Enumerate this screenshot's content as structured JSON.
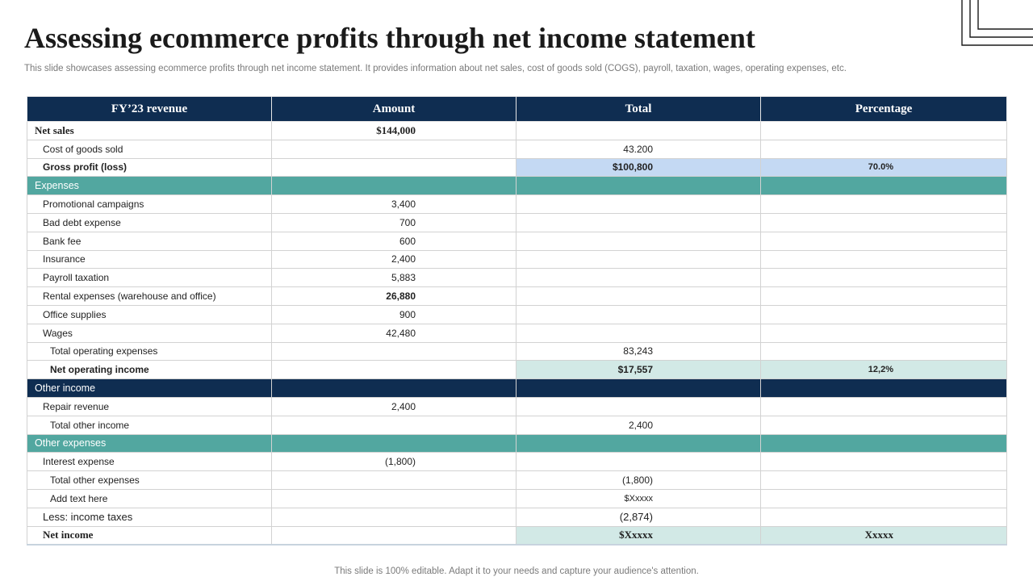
{
  "title": "Assessing ecommerce profits through net income statement",
  "subtitle": "This slide showcases assessing ecommerce profits through net income statement. It provides information about net sales, cost of goods sold (COGS), payroll, taxation,  wages, operating expenses, etc.",
  "table": {
    "headers": [
      "FY’23   revenue",
      "Amount",
      "Total",
      "Percentage"
    ],
    "net_sales": {
      "label": "Net sales",
      "amount": "$144,000"
    },
    "cogs": {
      "label": "Cost of goods sold",
      "total": "43.200"
    },
    "gross_profit": {
      "label": "Gross profit (loss)",
      "total": "$100,800",
      "percentage": "70.0%"
    },
    "expenses_header": "Expenses",
    "expenses": [
      {
        "label": "Promotional campaigns",
        "amount": "3,400"
      },
      {
        "label": "Bad debt expense",
        "amount": "700"
      },
      {
        "label": "Bank fee",
        "amount": "600"
      },
      {
        "label": "Insurance",
        "amount": "2,400"
      },
      {
        "label": "Payroll taxation",
        "amount": "5,883"
      },
      {
        "label": "Rental expenses (warehouse and office)",
        "amount": "26,880"
      },
      {
        "label": "Office supplies",
        "amount": "900"
      },
      {
        "label": "Wages",
        "amount": "42,480"
      }
    ],
    "total_operating": {
      "label": "Total operating expenses",
      "total": "83,243"
    },
    "net_operating": {
      "label": "Net operating income",
      "total": "$17,557",
      "percentage": "12,2%"
    },
    "other_income_header": "Other income",
    "repair_revenue": {
      "label": "Repair revenue",
      "amount": "2,400"
    },
    "total_other_income": {
      "label": "Total other income",
      "total": "2,400"
    },
    "other_expenses_header": "Other expenses",
    "interest_expense": {
      "label": "Interest expense",
      "amount": "(1,800)"
    },
    "total_other_expenses": {
      "label": "Total other expenses",
      "total": "(1,800)"
    },
    "add_text": {
      "label": "Add text here",
      "total": "$Xxxxx"
    },
    "income_taxes": {
      "label": "Less: income taxes",
      "total": "(2,874)"
    },
    "net_income": {
      "label": "Net income",
      "total": "$Xxxxx",
      "percentage": "Xxxxx"
    }
  },
  "footer": "This slide is 100% editable. Adapt it to your needs and capture your audience's attention.",
  "colors": {
    "navy": "#0f2d51",
    "teal": "#52a7a0",
    "highlight_blue": "#c4d9f3",
    "highlight_mint": "#d2e9e6"
  }
}
